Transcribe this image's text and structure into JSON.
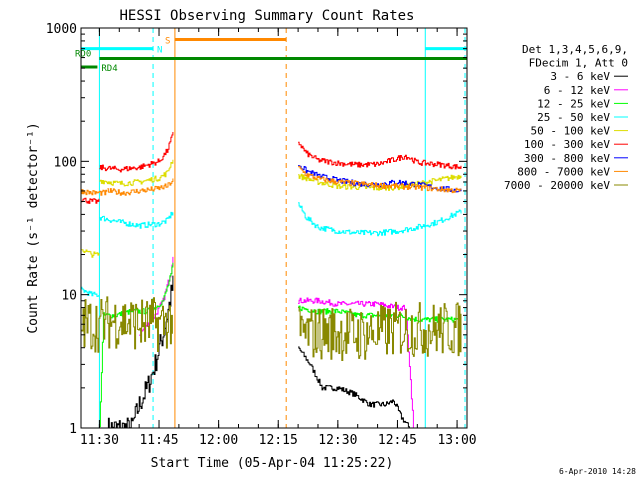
{
  "chart_data": {
    "type": "line",
    "title": "HESSI Observing Summary Count Rates",
    "xlabel": "Start Time (05-Apr-04 11:25:22)",
    "ylabel": "Count Rate (s⁻¹ detector⁻¹)",
    "y_scale": "log",
    "ylim": [
      1,
      1000
    ],
    "xlim": [
      "11:25:22",
      "13:02:30"
    ],
    "y_ticks": [
      1,
      10,
      100,
      1000
    ],
    "y_tick_labels": [
      "1",
      "10",
      "100",
      "1000"
    ],
    "x_ticks": [
      "11:30",
      "11:45",
      "12:00",
      "12:15",
      "12:30",
      "12:45",
      "13:00"
    ],
    "legend": {
      "position": "right",
      "header_lines": [
        "Det 1,3,4,5,6,9,",
        "FDecim 1, Att 0"
      ]
    },
    "date_stamp": "6-Apr-2010 14:28",
    "series": [
      {
        "name": "3 - 6 keV",
        "color": "#000000",
        "segments": [
          {
            "x": [
              "11:32",
              "11:38",
              "11:40",
              "11:42",
              "11:44",
              "11:45",
              "11:46",
              "11:47",
              "11:48",
              "11:48:30"
            ],
            "y": [
              1,
              1,
              1.5,
              2,
              3,
              4,
              5,
              7,
              10,
              12
            ],
            "noise": 0.5
          },
          {
            "x": [
              "12:20",
              "12:23",
              "12:26",
              "12:30",
              "12:34",
              "12:38",
              "12:42",
              "12:44",
              "12:46",
              "12:48"
            ],
            "y": [
              4,
              3,
              2,
              2,
              1.8,
              1.5,
              1.5,
              1.6,
              1.2,
              1
            ]
          }
        ]
      },
      {
        "name": "6 - 12 keV",
        "color": "#ff00ff",
        "segments": [
          {
            "x": [
              "11:40",
              "11:42",
              "11:44",
              "11:46",
              "11:48",
              "11:48:30"
            ],
            "y": [
              5,
              6,
              7,
              9,
              15,
              20
            ]
          },
          {
            "x": [
              "12:20",
              "12:25",
              "12:30",
              "12:35",
              "12:40",
              "12:45",
              "12:47",
              "12:48",
              "12:49"
            ],
            "y": [
              9,
              9,
              8.5,
              8.5,
              8.5,
              8,
              8,
              3,
              1
            ]
          }
        ]
      },
      {
        "name": "12 - 25 keV",
        "color": "#00ff00",
        "segments": [
          {
            "x": [
              "11:30",
              "11:31",
              "11:34",
              "11:38",
              "11:40",
              "11:42",
              "11:44",
              "11:46",
              "11:48",
              "11:48:30"
            ],
            "y": [
              1,
              7,
              7,
              7.5,
              7.5,
              7.5,
              8,
              9,
              14,
              17
            ]
          },
          {
            "x": [
              "12:20",
              "12:25",
              "12:30",
              "12:35",
              "12:40",
              "12:45",
              "12:50",
              "12:55",
              "13:00",
              "13:01"
            ],
            "y": [
              8,
              7.5,
              7.5,
              7,
              7,
              7,
              6.5,
              6.5,
              6.5,
              6
            ]
          }
        ]
      },
      {
        "name": "25 - 50 keV",
        "color": "#00ffff",
        "segments": [
          {
            "x": [
              "11:25:22",
              "11:28",
              "11:30"
            ],
            "y": [
              11,
              10,
              10
            ]
          },
          {
            "x": [
              "11:30",
              "11:35",
              "11:40",
              "11:45",
              "11:47",
              "11:48:30"
            ],
            "y": [
              38,
              35,
              33,
              34,
              36,
              42
            ]
          },
          {
            "x": [
              "12:20",
              "12:22",
              "12:25",
              "12:30",
              "12:35",
              "12:40",
              "12:45",
              "12:50",
              "12:55",
              "13:01"
            ],
            "y": [
              48,
              38,
              32,
              30,
              29,
              29,
              30,
              32,
              35,
              42
            ]
          }
        ]
      },
      {
        "name": "50 - 100 keV",
        "color": "#dddd00",
        "segments": [
          {
            "x": [
              "11:25:22",
              "11:28",
              "11:30"
            ],
            "y": [
              22,
              20,
              20
            ]
          },
          {
            "x": [
              "11:30",
              "11:35",
              "11:40",
              "11:45",
              "11:47",
              "11:48:30"
            ],
            "y": [
              72,
              68,
              70,
              75,
              82,
              105
            ]
          },
          {
            "x": [
              "12:20",
              "12:25",
              "12:30",
              "12:35",
              "12:40",
              "12:45",
              "12:50",
              "12:55",
              "13:01"
            ],
            "y": [
              78,
              70,
              65,
              64,
              63,
              64,
              68,
              72,
              78
            ]
          }
        ]
      },
      {
        "name": "100 - 300 keV",
        "color": "#ff0000",
        "segments": [
          {
            "x": [
              "11:25:22",
              "11:28",
              "11:30"
            ],
            "y": [
              52,
              50,
              50
            ]
          },
          {
            "x": [
              "11:30",
              "11:35",
              "11:40",
              "11:45",
              "11:47",
              "11:48:30"
            ],
            "y": [
              90,
              87,
              90,
              100,
              120,
              160
            ]
          },
          {
            "x": [
              "12:20",
              "12:22",
              "12:25",
              "12:30",
              "12:35",
              "12:40",
              "12:45",
              "12:47",
              "12:50",
              "12:55",
              "13:01"
            ],
            "y": [
              140,
              115,
              102,
              97,
              94,
              95,
              105,
              110,
              98,
              95,
              90
            ]
          }
        ]
      },
      {
        "name": "300 - 800 keV",
        "color": "#0000ff",
        "segments": [
          {
            "x": [
              "12:20",
              "12:22",
              "12:25",
              "12:30",
              "12:35",
              "12:40",
              "12:45",
              "12:50",
              "12:55",
              "13:01"
            ],
            "y": [
              95,
              85,
              78,
              72,
              68,
              67,
              70,
              67,
              63,
              60
            ]
          }
        ]
      },
      {
        "name": "800 - 7000 keV",
        "color": "#ff8800",
        "segments": [
          {
            "x": [
              "11:25:22",
              "11:28",
              "11:32"
            ],
            "y": [
              60,
              58,
              58
            ]
          },
          {
            "x": [
              "11:32",
              "11:36",
              "11:40",
              "11:44",
              "11:47",
              "11:48:30"
            ],
            "y": [
              60,
              58,
              60,
              62,
              65,
              72
            ]
          },
          {
            "x": [
              "12:20",
              "12:22",
              "12:25",
              "12:30",
              "12:35",
              "12:40",
              "12:45",
              "12:50",
              "12:55",
              "13:01"
            ],
            "y": [
              90,
              80,
              74,
              70,
              68,
              66,
              65,
              64,
              62,
              60
            ]
          }
        ]
      },
      {
        "name": "7000 - 20000 keV",
        "color": "#888800",
        "segments": [
          {
            "x": [
              "11:25:22",
              "11:30",
              "11:35",
              "11:40",
              "11:45",
              "11:48:30"
            ],
            "y": [
              6,
              6,
              6.5,
              6,
              6,
              6.5
            ],
            "noise": 1.2
          },
          {
            "x": [
              "12:20",
              "12:25",
              "12:30",
              "12:35",
              "12:40",
              "12:45",
              "12:50",
              "12:55",
              "13:01"
            ],
            "y": [
              5,
              5.2,
              5.2,
              5,
              5.2,
              5.5,
              5.5,
              5.5,
              5.5
            ],
            "noise": 1.2
          }
        ]
      }
    ],
    "flags": [
      {
        "label": "N",
        "color": "#00ffff",
        "bars": [
          {
            "x0": "11:25:22",
            "x1": "11:43:30"
          },
          {
            "x0": "12:52",
            "x1": "13:02:30"
          }
        ],
        "y_value": 700,
        "label_x": "11:44:30",
        "vlines": [
          {
            "x": "11:30",
            "dash": false
          },
          {
            "x": "11:43:30",
            "dash": true
          },
          {
            "x": "12:52",
            "dash": false
          },
          {
            "x": "13:02",
            "dash": true
          }
        ]
      },
      {
        "label": "S",
        "color": "#ff8800",
        "bars": [
          {
            "x0": "11:49",
            "x1": "12:17"
          }
        ],
        "y_value": 820,
        "label_x": "11:46:30",
        "vlines": [
          {
            "x": "11:49",
            "dash": false
          },
          {
            "x": "12:17",
            "dash": true
          }
        ]
      },
      {
        "label": "RD0",
        "color": "#008800",
        "bars": [
          {
            "x0": "11:30",
            "x1": "13:02:30"
          }
        ],
        "y_value": 590,
        "label_x": "11:25:22",
        "vlines": []
      },
      {
        "label": "RD4",
        "color": "#008800",
        "bars": [
          {
            "x0": "11:25:22",
            "x1": "11:29:30"
          }
        ],
        "y_value": 510,
        "label_x": "11:30:30",
        "vlines": []
      }
    ]
  }
}
